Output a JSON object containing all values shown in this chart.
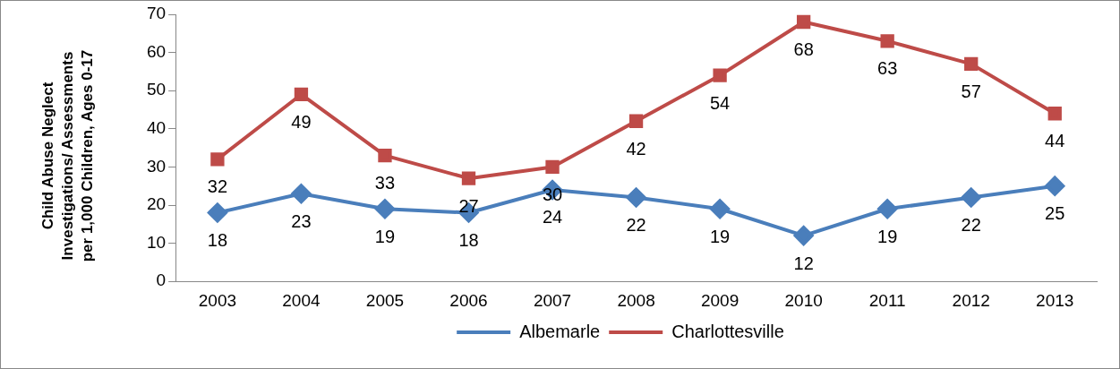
{
  "chart_data": {
    "type": "line",
    "ylabel": "Child Abuse Neglect Investigations/ Assessments per 1,000 Children, Ages 0-17",
    "categories": [
      "2003",
      "2004",
      "2005",
      "2006",
      "2007",
      "2008",
      "2009",
      "2010",
      "2011",
      "2012",
      "2013"
    ],
    "series": [
      {
        "name": "Albemarle",
        "color": "#4a7ebb",
        "marker": "diamond",
        "values": [
          18,
          23,
          19,
          18,
          24,
          22,
          19,
          12,
          19,
          22,
          25
        ]
      },
      {
        "name": "Charlottesville",
        "color": "#be4b48",
        "marker": "square",
        "values": [
          32,
          49,
          33,
          27,
          30,
          42,
          54,
          68,
          63,
          57,
          44
        ]
      }
    ],
    "ylim": [
      0,
      70
    ],
    "yticks": [
      0,
      10,
      20,
      30,
      40,
      50,
      60,
      70
    ],
    "grid": false,
    "legend": "bottom",
    "data_labels": true
  }
}
